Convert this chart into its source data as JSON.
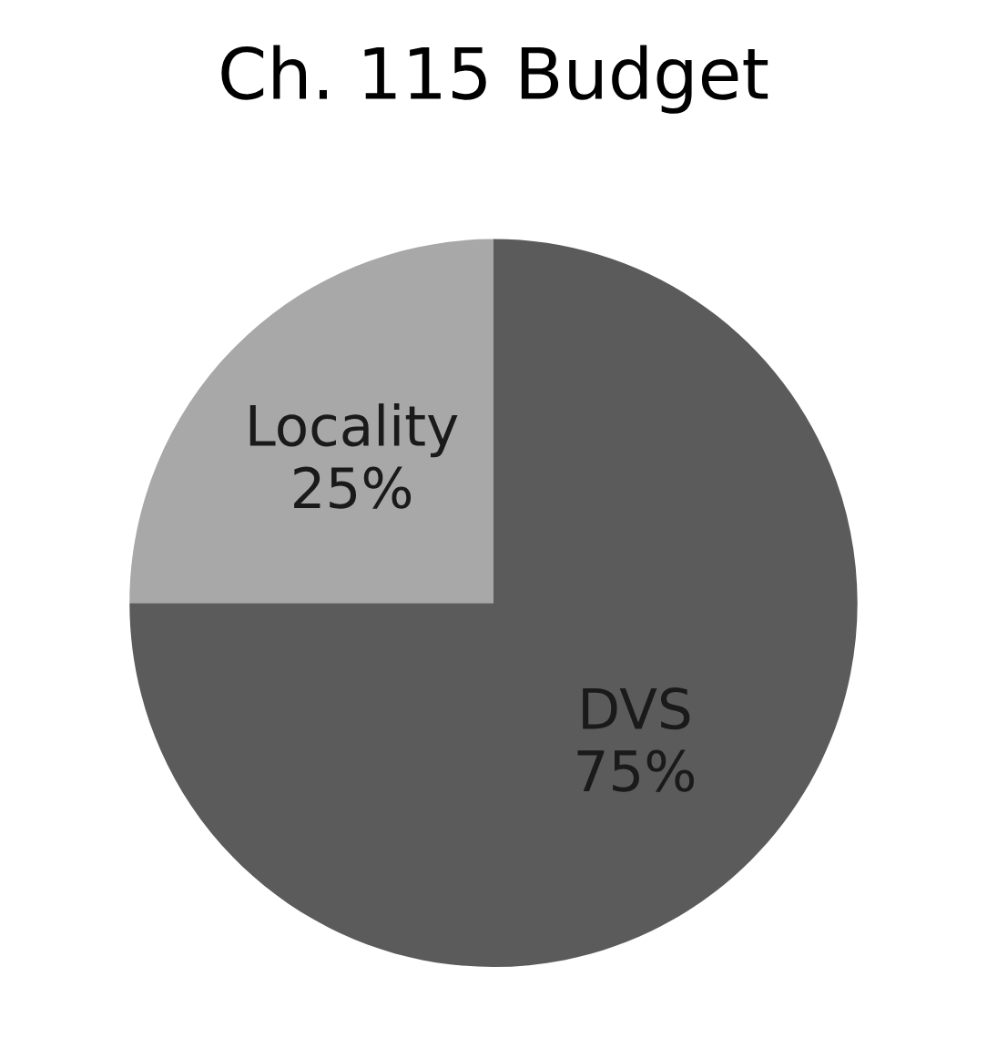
{
  "chart_data": {
    "type": "pie",
    "title": "Ch. 115 Budget",
    "categories": [
      "DVS",
      "Locality"
    ],
    "values": [
      75,
      25
    ],
    "value_labels": [
      "75%",
      "25%"
    ],
    "colors": [
      "#5b5b5b",
      "#a8a8a8"
    ]
  }
}
